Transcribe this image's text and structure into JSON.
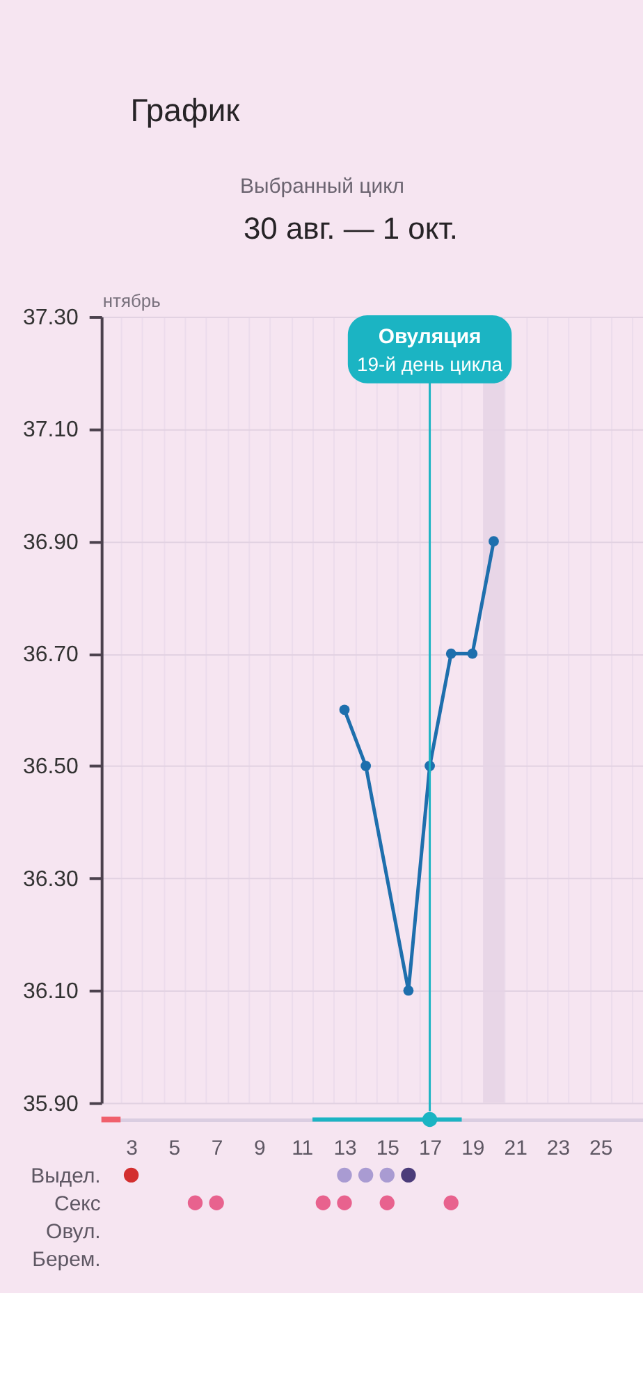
{
  "chart_data": [
    {
      "type": "line",
      "title": "График",
      "subtitle": "Выбранный цикл",
      "annotations": [
        "30 авг. — 1 окт.",
        "нтябрь"
      ],
      "x": [
        13,
        14,
        16,
        17,
        18,
        19,
        20
      ],
      "series": [
        {
          "color": "#1e6fad",
          "values": [
            36.6,
            36.5,
            36.1,
            36.5,
            36.7,
            36.7,
            36.9
          ]
        }
      ],
      "xlim": [
        1.6,
        27.0
      ],
      "xticks": [
        {
          "value": 2.5,
          "label": null
        },
        {
          "value": 3.5,
          "label": null
        },
        {
          "value": 4.5,
          "label": null
        },
        {
          "value": 5.5,
          "label": null
        },
        {
          "value": 6.5,
          "label": null
        },
        {
          "value": 7.5,
          "label": null
        },
        {
          "value": 8.5,
          "label": null
        },
        {
          "value": 9.5,
          "label": null
        },
        {
          "value": 10.5,
          "label": null
        },
        {
          "value": 11.5,
          "label": null
        },
        {
          "value": 12.5,
          "label": null
        },
        {
          "value": 13.5,
          "label": null
        },
        {
          "value": 14.5,
          "label": null
        },
        {
          "value": 15.5,
          "label": null
        },
        {
          "value": 16.5,
          "label": null
        },
        {
          "value": 17.5,
          "label": null
        },
        {
          "value": 18.5,
          "label": null
        },
        {
          "value": 20.5,
          "label": null
        },
        {
          "value": 21.5,
          "label": null
        },
        {
          "value": 22.5,
          "label": null
        },
        {
          "value": 23.5,
          "label": null
        },
        {
          "value": 24.5,
          "label": null
        },
        {
          "value": 25.5,
          "label": null
        },
        {
          "value": 26.5,
          "label": null
        }
      ],
      "ylim": [
        35.9,
        37.3
      ],
      "yticks": [
        {
          "value": 35.9,
          "label": "35.90"
        },
        {
          "value": 36.1,
          "label": "36.10"
        },
        {
          "value": 36.3,
          "label": "36.30"
        },
        {
          "value": 36.5,
          "label": "36.50"
        },
        {
          "value": 36.7,
          "label": "36.70"
        },
        {
          "value": 36.9,
          "label": "36.90"
        },
        {
          "value": 37.1,
          "label": "37.10"
        },
        {
          "value": 37.3,
          "label": "37.30"
        }
      ],
      "grid": true,
      "marker": "circle",
      "line_style": "solid",
      "tick_labels": "y",
      "ref_lines": [
        {
          "axis": "x",
          "value": 17,
          "label": "Овуляция\n19-й день цикла",
          "color": "#1bb4c3"
        }
      ],
      "bands": [
        {
          "axis": "x",
          "from": 19.5,
          "to": 20.5,
          "color": "#e5d3e5"
        }
      ]
    },
    {
      "type": "scatter",
      "orientation": "horizontal",
      "categories": [
        null,
        null,
        "Выдел.",
        "Секс",
        "Овул.",
        "Берем."
      ],
      "xlim": [
        1.6,
        27.0
      ],
      "xticks": [
        3,
        5,
        7,
        9,
        11,
        13,
        15,
        17,
        19,
        21,
        23,
        25
      ],
      "marker": "circle",
      "series": [
        {
          "type": "bar",
          "color": "#f0606c",
          "values": [
            2.5,
            null,
            null,
            null,
            null,
            null
          ]
        },
        {
          "color": "#1bb4c3",
          "values": [
            17,
            null,
            null,
            null,
            null,
            null
          ],
          "errors": [
            [
              11.5,
              18.5
            ],
            null,
            null,
            null,
            null,
            null
          ]
        },
        {
          "color": "#d32f2f",
          "values": [
            null,
            null,
            3,
            null,
            null,
            null
          ]
        },
        {
          "color": "#a99bd2",
          "values": [
            null,
            null,
            13,
            null,
            null,
            null
          ]
        },
        {
          "color": "#a99bd2",
          "values": [
            null,
            null,
            14,
            null,
            null,
            null
          ]
        },
        {
          "color": "#a99bd2",
          "values": [
            null,
            null,
            15,
            null,
            null,
            null
          ]
        },
        {
          "color": "#4b3c7a",
          "values": [
            null,
            null,
            16,
            null,
            null,
            null
          ]
        },
        {
          "color": "#e8628e",
          "values": [
            null,
            null,
            null,
            6,
            null,
            null
          ]
        },
        {
          "color": "#e8628e",
          "values": [
            null,
            null,
            null,
            7,
            null,
            null
          ]
        },
        {
          "color": "#e8628e",
          "values": [
            null,
            null,
            null,
            12,
            null,
            null
          ]
        },
        {
          "color": "#e8628e",
          "values": [
            null,
            null,
            null,
            13,
            null,
            null
          ]
        },
        {
          "color": "#e8628e",
          "values": [
            null,
            null,
            null,
            15,
            null,
            null
          ]
        },
        {
          "color": "#e8628e",
          "values": [
            null,
            null,
            null,
            18,
            null,
            null
          ]
        }
      ]
    }
  ]
}
